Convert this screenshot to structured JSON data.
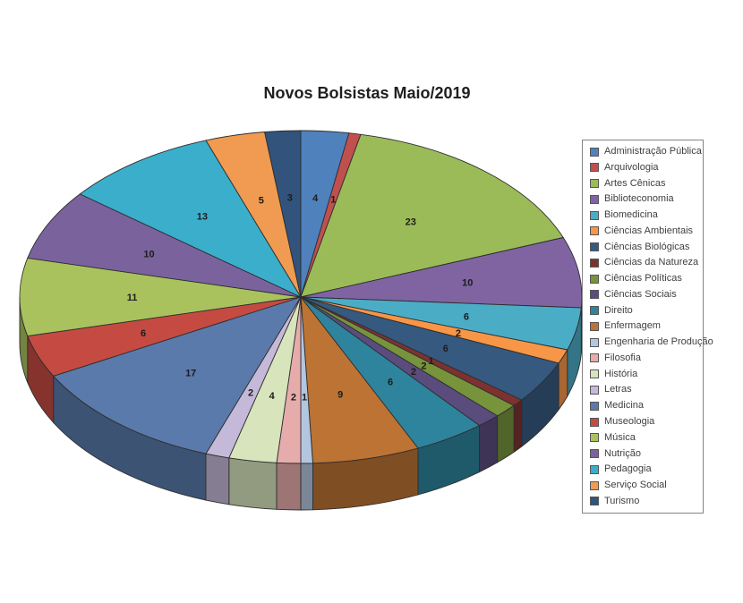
{
  "title": "Novos Bolsistas Maio/2019",
  "chart_data": {
    "type": "pie",
    "style": "3d",
    "title": "Novos Bolsistas Maio/2019",
    "legend_position": "right",
    "total": 146,
    "data_labels": "value",
    "categories": [
      "Administração Pública",
      "Arquivologia",
      "Artes Cênicas",
      "Biblioteconomia",
      "Biomedicina",
      "Ciências Ambientais",
      "Ciências Biológicas",
      "Ciências da Natureza",
      "Ciências Políticas",
      "Ciências Sociais",
      "Direito",
      "Enfermagem",
      "Engenharia de Produção",
      "Filosofia",
      "História",
      "Letras",
      "Medicina",
      "Museologia",
      "Música",
      "Nutrição",
      "Pedagogia",
      "Serviço Social",
      "Turismo"
    ],
    "values": [
      4,
      1,
      23,
      10,
      6,
      2,
      6,
      1,
      2,
      2,
      6,
      9,
      1,
      2,
      4,
      2,
      17,
      6,
      11,
      10,
      13,
      5,
      3
    ],
    "colors": [
      "#4F81BD",
      "#C0504D",
      "#9BBB59",
      "#8064A2",
      "#4BACC6",
      "#F79646",
      "#36597F",
      "#7E3230",
      "#77933C",
      "#5B4C7E",
      "#2E849C",
      "#BC7334",
      "#B2C6E0",
      "#E5ACAB",
      "#D7E4BC",
      "#C4B9D8",
      "#5A7AAB",
      "#C54B42",
      "#A9C25E",
      "#7A639D",
      "#3BAECB",
      "#F09B51",
      "#31537C"
    ],
    "label_color": "#1c1c1c",
    "outline_color": "#2e2e2e"
  }
}
